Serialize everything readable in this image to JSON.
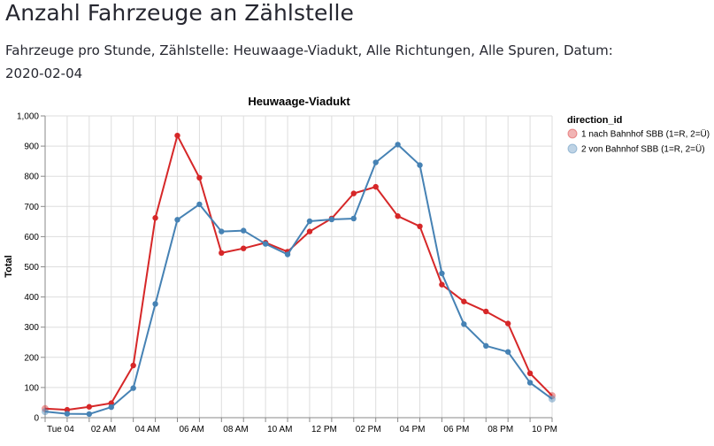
{
  "page": {
    "title": "Anzahl Fahrzeuge an Zählstelle",
    "subtitle": "Fahrzeuge pro Stunde, Zählstelle: Heuwaage-Viadukt, Alle Richtungen, Alle Spuren, Datum: 2020-02-04"
  },
  "chart_data": {
    "type": "line",
    "title": "Heuwaage-Viadukt",
    "xlabel": "",
    "ylabel": "Total",
    "x": [
      0,
      1,
      2,
      3,
      4,
      5,
      6,
      7,
      8,
      9,
      10,
      11,
      12,
      13,
      14,
      15,
      16,
      17,
      18,
      19,
      20,
      21,
      22,
      23
    ],
    "xlim": [
      0,
      23
    ],
    "x_ticks": [
      {
        "x": 0,
        "label": "Tue 04"
      },
      {
        "x": 2,
        "label": "02 AM"
      },
      {
        "x": 4,
        "label": "04 AM"
      },
      {
        "x": 6,
        "label": "06 AM"
      },
      {
        "x": 8,
        "label": "08 AM"
      },
      {
        "x": 10,
        "label": "10 AM"
      },
      {
        "x": 12,
        "label": "12 PM"
      },
      {
        "x": 14,
        "label": "02 PM"
      },
      {
        "x": 16,
        "label": "04 PM"
      },
      {
        "x": 18,
        "label": "06 PM"
      },
      {
        "x": 20,
        "label": "08 PM"
      },
      {
        "x": 22,
        "label": "10 PM"
      }
    ],
    "ylim": [
      0,
      1000
    ],
    "y_ticks": [
      0,
      100,
      200,
      300,
      400,
      500,
      600,
      700,
      800,
      900,
      1000
    ],
    "y_tick_labels": [
      "0",
      "100",
      "200",
      "300",
      "400",
      "500",
      "600",
      "700",
      "800",
      "900",
      "1,000"
    ],
    "grid": true,
    "legend": {
      "title": "direction_id",
      "placement": "top-right"
    },
    "series": [
      {
        "name": "1 nach Bahnhof SBB (1=R, 2=Ü)",
        "color": "#d62728",
        "values": [
          30,
          26,
          36,
          48,
          173,
          662,
          935,
          795,
          546,
          561,
          580,
          550,
          617,
          660,
          743,
          765,
          668,
          634,
          441,
          385,
          352,
          312,
          147,
          73
        ]
      },
      {
        "name": "2 von Bahnhof SBB (1=R, 2=Ü)",
        "color": "#4682b4",
        "values": [
          20,
          13,
          12,
          35,
          98,
          377,
          656,
          707,
          617,
          620,
          576,
          541,
          651,
          657,
          660,
          846,
          905,
          837,
          478,
          310,
          238,
          218,
          116,
          62
        ]
      }
    ]
  }
}
